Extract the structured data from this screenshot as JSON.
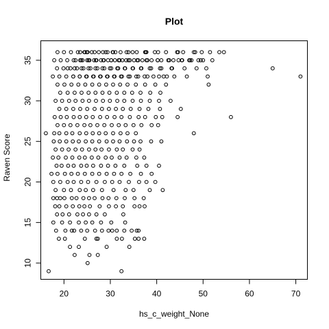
{
  "chart_data": {
    "type": "scatter",
    "title": "Plot",
    "xlabel": "hs_c_weight_None",
    "ylabel": "Raven Score",
    "xlim": [
      15,
      72.5
    ],
    "ylim": [
      8,
      37.4
    ],
    "xticks": [
      20,
      30,
      40,
      50,
      60,
      70
    ],
    "yticks": [
      10,
      15,
      20,
      25,
      30,
      35
    ],
    "xtick_labels": [
      "20",
      "30",
      "40",
      "50",
      "60",
      "70"
    ],
    "ytick_labels": [
      "10",
      "15",
      "20",
      "25",
      "30",
      "35"
    ],
    "grid": false,
    "legend": "none",
    "marker": "open-circle",
    "point_color": "#000000",
    "series": [
      {
        "x": [
          16.7,
          32.4,
          25.1,
          22.3,
          25.5,
          27.3,
          21.3,
          23.2,
          29.2,
          34.1,
          18.9,
          20.2,
          24.5,
          27.0,
          27.3,
          31.4,
          32.5,
          35.3,
          36.1,
          37.3,
          18.3,
          20.3,
          21.7,
          22.2,
          23.7,
          25.0,
          26.7,
          28.2,
          29.6,
          30.4,
          31.4,
          33.0,
          34.6,
          35.7,
          36.1,
          17.7,
          19.6,
          21.3,
          23.2,
          24.7,
          26.1,
          28.0,
          30.2,
          33.2,
          18.5,
          19.7,
          21.1,
          22.9,
          24.1,
          25.4,
          27.0,
          28.8,
          32.8,
          18.1,
          19.0,
          20.5,
          21.9,
          23.3,
          24.4,
          25.6,
          27.7,
          29.7,
          31.2,
          32.7,
          35.2,
          36.3,
          37.4,
          17.7,
          18.5,
          19.2,
          20.1,
          21.7,
          22.7,
          24.2,
          25.4,
          26.6,
          28.3,
          29.6,
          31.3,
          33.1,
          35.2,
          37.2,
          18.2,
          20.0,
          21.5,
          23.4,
          24.7,
          26.3,
          28.2,
          30.7,
          33.3,
          35.0,
          38.5,
          41.3,
          17.7,
          19.2,
          20.8,
          22.1,
          23.7,
          25.2,
          27.0,
          28.8,
          30.4,
          32.0,
          34.0,
          36.2,
          37.8,
          39.7,
          17.3,
          18.6,
          20.2,
          21.6,
          23.0,
          24.5,
          26.1,
          27.6,
          29.2,
          30.8,
          32.4,
          34.3,
          36.6,
          38.9,
          18.4,
          19.5,
          20.9,
          22.1,
          23.7,
          24.9,
          26.3,
          28.0,
          29.5,
          31.1,
          33.0,
          35.8,
          37.8,
          40.5,
          17.6,
          18.8,
          20.4,
          21.8,
          23.3,
          24.5,
          26.0,
          27.4,
          29.0,
          30.3,
          32.0,
          33.5,
          35.6,
          37.3,
          18.2,
          19.6,
          21.0,
          22.5,
          23.9,
          25.4,
          26.8,
          28.1,
          29.7,
          31.4,
          32.7,
          34.8,
          36.3,
          17.8,
          19.1,
          20.5,
          21.9,
          23.2,
          24.7,
          26.1,
          27.6,
          29.2,
          30.6,
          32.0,
          33.6,
          35.1,
          36.5,
          38.8,
          41.0,
          16.1,
          17.9,
          19.0,
          20.5,
          21.8,
          23.4,
          24.8,
          26.2,
          27.6,
          29.0,
          30.6,
          32.2,
          33.7,
          35.5,
          48.0,
          18.6,
          20.0,
          21.4,
          22.9,
          24.4,
          25.7,
          27.2,
          28.7,
          30.3,
          31.8,
          33.3,
          35.0,
          36.7,
          38.9,
          40.3,
          18.0,
          19.3,
          20.6,
          22.1,
          23.4,
          24.8,
          26.2,
          27.8,
          29.3,
          30.9,
          32.4,
          34.2,
          36.1,
          37.5,
          39.8,
          41.2,
          44.5,
          56.0,
          19.0,
          20.5,
          22.0,
          23.5,
          25.0,
          26.6,
          28.2,
          29.7,
          31.2,
          32.7,
          34.4,
          36.3,
          38.2,
          40.7,
          45.2,
          18.2,
          19.6,
          21.1,
          22.5,
          24.0,
          25.4,
          26.9,
          28.4,
          29.9,
          31.5,
          33.0,
          34.8,
          36.6,
          38.5,
          40.5,
          43.0,
          19.2,
          20.8,
          22.3,
          23.8,
          25.3,
          26.8,
          28.3,
          29.8,
          31.4,
          33.0,
          34.7,
          36.5,
          38.6,
          40.8,
          18.6,
          20.1,
          21.6,
          23.1,
          24.6,
          26.1,
          27.6,
          29.1,
          30.6,
          32.1,
          33.7,
          35.5,
          37.5,
          39.7,
          42.0,
          51.2,
          17.6,
          19.0,
          20.5,
          22.0,
          23.4,
          24.9,
          26.4,
          27.9,
          29.4,
          30.9,
          32.5,
          34.2,
          36.0,
          38.0,
          40.5,
          42.2,
          18.5,
          19.9,
          21.4,
          22.8,
          24.2,
          25.7,
          27.2,
          28.7,
          30.2,
          31.7,
          33.2,
          34.9,
          36.7,
          38.8,
          41.0,
          43.3,
          17.9,
          19.3,
          20.7,
          22.1,
          23.5,
          25.0,
          26.5,
          28.0,
          29.5,
          31.0,
          32.6,
          34.2,
          36.0,
          37.8,
          40.2,
          42.7,
          45.5,
          47.5,
          50.0,
          18.6,
          20.0,
          21.5,
          23.0,
          24.5,
          26.0,
          27.5,
          29.0,
          30.6,
          32.2,
          33.9,
          35.7,
          37.6,
          39.6,
          42.0,
          44.4,
          48.3,
          51.5,
          53.5,
          54.5,
          22.0,
          23.4,
          24.8,
          26.3,
          27.8,
          29.3,
          30.8,
          32.3,
          33.9,
          35.6,
          37.4,
          39.3,
          41.5,
          43.8,
          46.5,
          51.0,
          71.0,
          20.8,
          22.3,
          23.8,
          25.3,
          26.8,
          28.3,
          29.9,
          31.5,
          33.1,
          34.8,
          36.6,
          38.5,
          40.7,
          43.2,
          46.0,
          48.6,
          50.7,
          22.5,
          24.0,
          25.5,
          27.0,
          28.6,
          30.2,
          31.8,
          33.4,
          35.1,
          36.9,
          38.9,
          41.0,
          43.6,
          45.4,
          47.0,
          49.5,
          65.0,
          23.7,
          25.3,
          26.9,
          28.5,
          30.2,
          32.0,
          33.9,
          35.8,
          38.0,
          40.2,
          42.5,
          44.7,
          47.2,
          49.0,
          52.0,
          23.5,
          24.9,
          26.6,
          28.4,
          30.5,
          33.5,
          37.5,
          40.3,
          44.6,
          48.0,
          24.4,
          25.1,
          29.4,
          31.1,
          34.8,
          37.8,
          45.7,
          49.7
        ],
        "y": [
          9,
          9,
          10,
          11,
          11,
          11,
          12,
          12,
          12,
          12,
          13,
          13,
          13,
          13,
          13,
          13,
          13,
          13,
          13,
          13,
          14,
          14,
          14,
          14,
          14,
          14,
          14,
          14,
          14,
          14,
          14,
          14,
          14,
          14,
          14,
          15,
          15,
          15,
          15,
          15,
          15,
          15,
          15,
          15,
          16,
          16,
          16,
          16,
          16,
          16,
          16,
          16,
          16,
          17,
          17,
          17,
          17,
          17,
          17,
          17,
          17,
          17,
          17,
          17,
          17,
          17,
          17,
          18,
          18,
          18,
          18,
          18,
          18,
          18,
          18,
          18,
          18,
          18,
          18,
          18,
          18,
          18,
          19,
          19,
          19,
          19,
          19,
          19,
          19,
          19,
          19,
          19,
          19,
          19,
          20,
          20,
          20,
          20,
          20,
          20,
          20,
          20,
          20,
          20,
          20,
          20,
          20,
          20,
          21,
          21,
          21,
          21,
          21,
          21,
          21,
          21,
          21,
          21,
          21,
          21,
          21,
          21,
          22,
          22,
          22,
          22,
          22,
          22,
          22,
          22,
          22,
          22,
          22,
          22,
          22,
          22,
          23,
          23,
          23,
          23,
          23,
          23,
          23,
          23,
          23,
          23,
          23,
          23,
          23,
          23,
          24,
          24,
          24,
          24,
          24,
          24,
          24,
          24,
          24,
          24,
          24,
          24,
          24,
          25,
          25,
          25,
          25,
          25,
          25,
          25,
          25,
          25,
          25,
          25,
          25,
          25,
          25,
          25,
          25,
          26,
          26,
          26,
          26,
          26,
          26,
          26,
          26,
          26,
          26,
          26,
          26,
          26,
          26,
          26,
          27,
          27,
          27,
          27,
          27,
          27,
          27,
          27,
          27,
          27,
          27,
          27,
          27,
          27,
          27,
          28,
          28,
          28,
          28,
          28,
          28,
          28,
          28,
          28,
          28,
          28,
          28,
          28,
          28,
          28,
          28,
          28,
          28,
          29,
          29,
          29,
          29,
          29,
          29,
          29,
          29,
          29,
          29,
          29,
          29,
          29,
          29,
          29,
          30,
          30,
          30,
          30,
          30,
          30,
          30,
          30,
          30,
          30,
          30,
          30,
          30,
          30,
          30,
          30,
          31,
          31,
          31,
          31,
          31,
          31,
          31,
          31,
          31,
          31,
          31,
          31,
          31,
          31,
          32,
          32,
          32,
          32,
          32,
          32,
          32,
          32,
          32,
          32,
          32,
          32,
          32,
          32,
          32,
          32,
          33,
          33,
          33,
          33,
          33,
          33,
          33,
          33,
          33,
          33,
          33,
          33,
          33,
          33,
          33,
          33,
          34,
          34,
          34,
          34,
          34,
          34,
          34,
          34,
          34,
          34,
          34,
          34,
          34,
          34,
          34,
          34,
          35,
          35,
          35,
          35,
          35,
          35,
          35,
          35,
          35,
          35,
          35,
          35,
          35,
          35,
          35,
          35,
          35,
          35,
          35,
          36,
          36,
          36,
          36,
          36,
          36,
          36,
          36,
          36,
          36,
          36,
          36,
          36,
          36,
          36,
          36,
          36,
          36,
          36,
          36,
          33,
          33,
          33,
          33,
          33,
          33,
          33,
          33,
          33,
          33,
          33,
          33,
          33,
          33,
          33,
          33,
          33,
          34,
          34,
          34,
          34,
          34,
          34,
          34,
          34,
          34,
          34,
          34,
          34,
          34,
          34,
          34,
          34,
          34,
          35,
          35,
          35,
          35,
          35,
          35,
          35,
          35,
          35,
          35,
          35,
          35,
          35,
          35,
          35,
          35,
          34,
          35,
          35,
          35,
          35,
          35,
          35,
          35,
          35,
          35,
          35,
          35,
          35,
          35,
          35,
          35,
          36,
          36,
          36,
          36,
          36,
          36,
          36,
          36,
          36,
          36,
          36,
          36,
          36,
          36,
          36,
          36,
          36,
          36
        ]
      }
    ]
  }
}
